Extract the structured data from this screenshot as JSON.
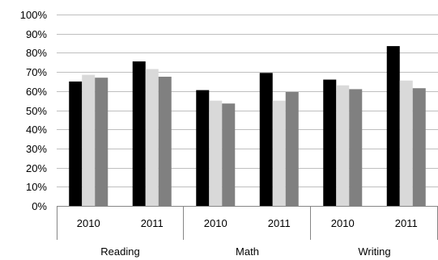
{
  "chart_data": {
    "type": "bar",
    "title": "",
    "xlabel": "",
    "ylabel": "",
    "ylim": [
      0,
      1
    ],
    "y_tick_labels": [
      "0%",
      "10%",
      "20%",
      "30%",
      "40%",
      "50%",
      "60%",
      "70%",
      "80%",
      "90%",
      "100%"
    ],
    "grid": true,
    "legend": "none",
    "groups": [
      {
        "label": "Reading",
        "categories": [
          "2010",
          "2011"
        ]
      },
      {
        "label": "Math",
        "categories": [
          "2010",
          "2011"
        ]
      },
      {
        "label": "Writing",
        "categories": [
          "2010",
          "2011"
        ]
      }
    ],
    "series": [
      {
        "color": "#000000",
        "values": [
          0.65,
          0.755,
          0.605,
          0.695,
          0.66,
          0.835
        ]
      },
      {
        "color": "#d9d9d9",
        "values": [
          0.685,
          0.715,
          0.55,
          0.55,
          0.63,
          0.655
        ]
      },
      {
        "color": "#808080",
        "values": [
          0.67,
          0.675,
          0.535,
          0.595,
          0.61,
          0.615
        ]
      }
    ]
  }
}
